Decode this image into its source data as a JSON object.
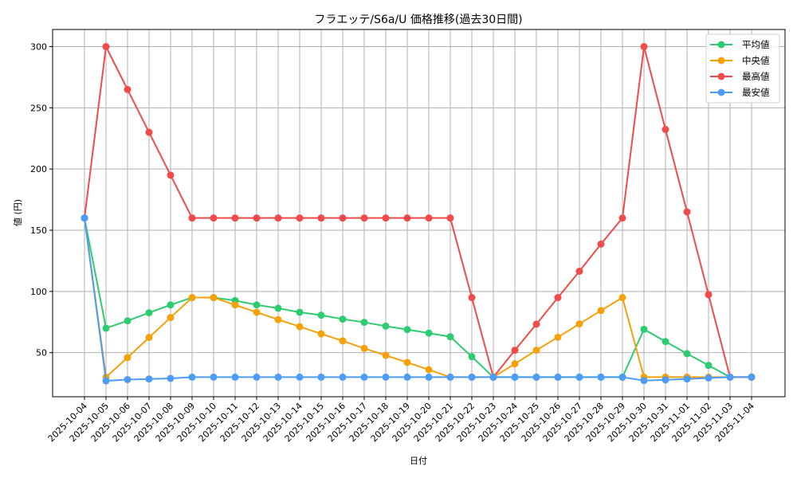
{
  "chart_data": {
    "type": "line",
    "title": "フラエッテ/S6a/U 価格推移(過去30日間)",
    "xlabel": "日付",
    "ylabel": "値 (円)",
    "ylim": [
      14,
      314
    ],
    "yticks": [
      50,
      100,
      150,
      200,
      250,
      300
    ],
    "grid": true,
    "legend_position": "upper right",
    "categories": [
      "2025-10-04",
      "2025-10-05",
      "2025-10-06",
      "2025-10-07",
      "2025-10-08",
      "2025-10-09",
      "2025-10-10",
      "2025-10-11",
      "2025-10-12",
      "2025-10-13",
      "2025-10-14",
      "2025-10-15",
      "2025-10-16",
      "2025-10-17",
      "2025-10-18",
      "2025-10-19",
      "2025-10-20",
      "2025-10-21",
      "2025-10-22",
      "2025-10-23",
      "2025-10-24",
      "2025-10-25",
      "2025-10-26",
      "2025-10-27",
      "2025-10-28",
      "2025-10-29",
      "2025-10-30",
      "2025-10-31",
      "2025-11-01",
      "2025-11-02",
      "2025-11-03",
      "2025-11-04"
    ],
    "series": [
      {
        "name": "平均値",
        "color": "#2ecc71",
        "values": [
          160,
          70,
          76,
          82.6,
          89,
          95,
          95,
          92.6,
          89,
          86.3,
          83,
          80.6,
          77.4,
          74.8,
          71.7,
          68.9,
          66,
          63,
          46.7,
          30,
          30,
          30,
          30,
          30,
          30,
          30,
          69.1,
          59.1,
          49.2,
          39.6,
          30,
          30
        ]
      },
      {
        "name": "中央値",
        "color": "#f5a10a",
        "values": [
          160,
          30,
          46,
          62.4,
          78.7,
          95,
          95,
          89,
          83,
          77,
          71.3,
          65.4,
          59.6,
          53.5,
          47.8,
          42,
          36.1,
          30,
          30,
          30,
          40.9,
          52,
          62.6,
          73.5,
          84.4,
          95,
          30,
          30,
          30,
          30,
          30,
          30
        ]
      },
      {
        "name": "最高値",
        "color": "#f04b4b",
        "values": [
          160,
          300,
          265,
          230,
          195,
          160,
          160,
          160,
          160,
          160,
          160,
          160,
          160,
          160,
          160,
          160,
          160,
          160,
          95,
          30,
          52,
          73.3,
          95,
          116.5,
          138.7,
          160,
          300,
          232.3,
          165,
          97.4,
          30,
          30
        ]
      },
      {
        "name": "最安値",
        "color": "#4d9cf5",
        "values": [
          160,
          27,
          28,
          28.5,
          29,
          30,
          30,
          30,
          30,
          30,
          30,
          30,
          30,
          30,
          30,
          30,
          30,
          30,
          30,
          30,
          30,
          30,
          30,
          30,
          30,
          30,
          27.2,
          27.8,
          28.5,
          29.3,
          30,
          30
        ]
      }
    ]
  }
}
